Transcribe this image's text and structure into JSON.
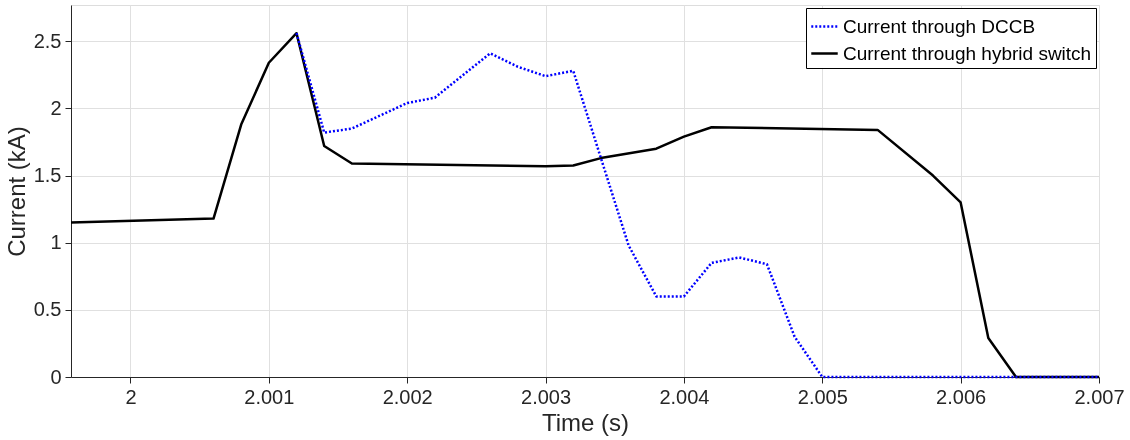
{
  "chart_data": {
    "type": "line",
    "xlabel": "Time (s)",
    "ylabel": "Current (kA)",
    "xlim": [
      1.99957,
      2.007
    ],
    "xticks": [
      2,
      2.001,
      2.002,
      2.003,
      2.004,
      2.005,
      2.006,
      2.007
    ],
    "ylim": [
      0,
      2.77
    ],
    "yticks": [
      {
        "value": 0,
        "label": "0"
      },
      0.5,
      {
        "value": 1,
        "label": "1"
      },
      1.5,
      {
        "value": 2,
        "label": "2"
      },
      2.5
    ],
    "grid": true,
    "legend": "top right",
    "series": [
      {
        "name": "Current through DCCB",
        "color": "#0000ff",
        "line_style": "dotted",
        "x": [
          2.0012,
          2.0014,
          2.0016,
          2.002,
          2.0022,
          2.0026,
          2.0028,
          2.003,
          2.0032,
          2.0036,
          2.0038,
          2.004,
          2.0042,
          2.0044,
          2.0046,
          2.0048,
          2.005,
          2.007
        ],
        "values": [
          2.56,
          1.82,
          1.85,
          2.04,
          2.08,
          2.41,
          2.31,
          2.24,
          2.28,
          0.98,
          0.6,
          0.6,
          0.85,
          0.89,
          0.84,
          0.3,
          0,
          0
        ]
      },
      {
        "name": "Current through hybrid switch",
        "color": "#000000",
        "line_style": "solid",
        "x": [
          1.99957,
          2.0006,
          2.0008,
          2.001,
          2.0012,
          2.0014,
          2.0016,
          2.003,
          2.0032,
          2.0034,
          2.0038,
          2.004,
          2.0042,
          2.0054,
          2.0058,
          2.006,
          2.0062,
          2.0064,
          2.007
        ],
        "values": [
          1.15,
          1.18,
          1.88,
          2.34,
          2.56,
          1.72,
          1.59,
          1.57,
          1.575,
          1.63,
          1.7,
          1.79,
          1.86,
          1.84,
          1.5,
          1.3,
          0.29,
          0,
          0
        ]
      }
    ]
  }
}
